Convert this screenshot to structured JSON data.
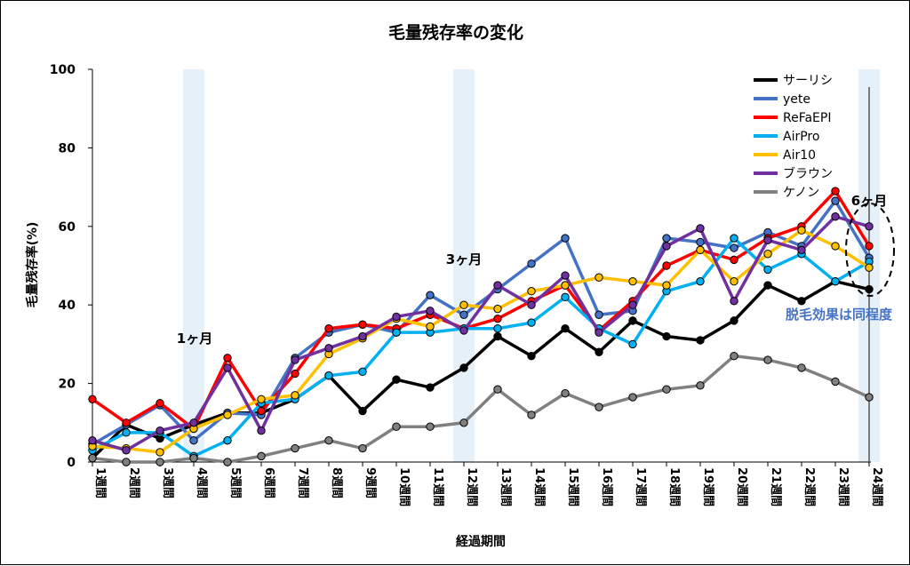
{
  "chart_data": {
    "type": "line",
    "title": "毛量残存率の変化",
    "xlabel": "経過期間",
    "ylabel": "毛量残存率(%)",
    "ylim": [
      0,
      100
    ],
    "yticks": [
      "0",
      "20",
      "40",
      "60",
      "80",
      "100"
    ],
    "categories": [
      "1週間",
      "2週間",
      "3週間",
      "4週間",
      "5週間",
      "6週間",
      "7週間",
      "8週間",
      "9週間",
      "10週間",
      "11週間",
      "12週間",
      "13週間",
      "14週間",
      "15週間",
      "16週間",
      "17週間",
      "18週間",
      "19週間",
      "20週間",
      "21週間",
      "22週間",
      "23週間",
      "24週間"
    ],
    "legend_position": "top-right",
    "grid": false,
    "highlight_weeks": [
      4,
      12,
      24
    ],
    "annotations": {
      "month1": "1ヶ月",
      "month3": "3ヶ月",
      "month6": "6ヶ月",
      "note": "脱毛効果は同程度"
    },
    "series": [
      {
        "name": "サーリシ",
        "color": "#000000",
        "values": [
          1,
          9.5,
          6,
          9.5,
          12.5,
          12.5,
          16,
          22,
          13,
          21,
          19,
          24,
          32,
          27,
          34,
          28,
          36,
          32,
          31,
          36,
          45,
          41,
          46,
          44
        ]
      },
      {
        "name": "yete",
        "color": "#4472C4",
        "values": [
          4.5,
          9.5,
          14.5,
          5.5,
          12.5,
          12,
          26.5,
          33,
          35,
          33,
          42.5,
          37.5,
          44,
          50.5,
          57,
          37.5,
          38.5,
          57,
          56,
          54.5,
          58.5,
          55,
          66.5,
          52
        ]
      },
      {
        "name": "ReFaEPI",
        "color": "#FF0000",
        "values": [
          16,
          10,
          15,
          8.5,
          26.5,
          13,
          22.5,
          34,
          35,
          34,
          37.5,
          34,
          36.5,
          41,
          45,
          33.5,
          41,
          50,
          54,
          51.5,
          57,
          60,
          69,
          55
        ]
      },
      {
        "name": "AirPro",
        "color": "#00B0F0",
        "values": [
          3,
          7.5,
          7.5,
          1.5,
          5.5,
          15,
          16,
          22,
          23,
          33,
          33,
          34,
          34,
          35.5,
          42,
          34,
          30,
          43.5,
          46,
          57,
          49,
          53,
          46,
          51
        ]
      },
      {
        "name": "Air10",
        "color": "#FFC000",
        "values": [
          4,
          3.5,
          2.5,
          8.5,
          12,
          16,
          17,
          27.5,
          31.5,
          36.5,
          34.5,
          40,
          39,
          43.5,
          45,
          47,
          46,
          45,
          54,
          46,
          53,
          59,
          55,
          49.5
        ]
      },
      {
        "name": "ブラウン",
        "color": "#7030A0",
        "values": [
          5.5,
          3,
          8,
          10,
          24,
          8,
          26,
          29,
          32,
          37,
          38.5,
          33.5,
          45,
          40,
          47.5,
          33,
          40,
          55,
          59.5,
          41,
          56.5,
          54,
          62.5,
          60
        ]
      },
      {
        "name": "ケノン",
        "color": "#808080",
        "values": [
          1,
          0,
          0,
          1,
          0,
          1.5,
          3.5,
          5.5,
          3.5,
          9,
          9,
          10,
          18.5,
          12,
          17.5,
          14,
          16.5,
          18.5,
          19.5,
          27,
          26,
          24,
          20.5,
          16.5
        ]
      }
    ]
  }
}
